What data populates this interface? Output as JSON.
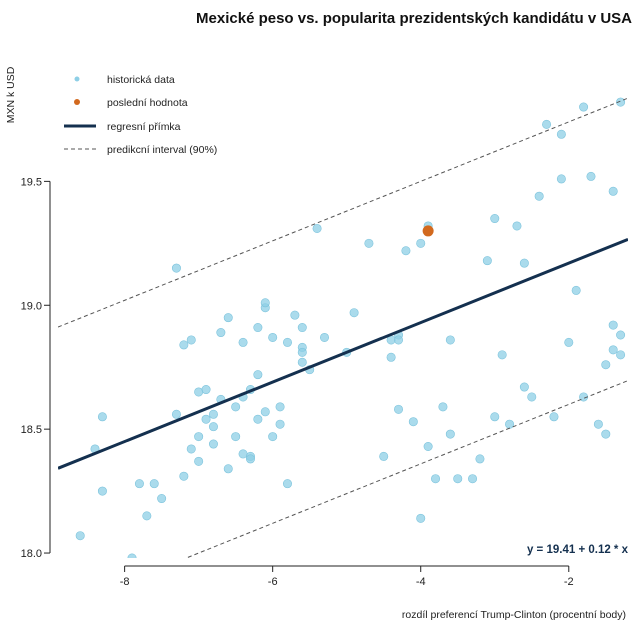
{
  "chart_data": {
    "type": "scatter",
    "title": "Mexické peso vs. popularita prezidentských kandidátu v USA",
    "xlabel": "rozdíl preferencí Trump-Clinton (procentní body)",
    "ylabel": "MXN k USD",
    "xlim": [
      -8.9,
      -1.2
    ],
    "ylim": [
      17.98,
      20.01
    ],
    "x_ticks": [
      -8,
      -6,
      -4,
      -2
    ],
    "x_tick_labels": [
      "-8",
      "-6",
      "-4",
      "-2"
    ],
    "y_ticks": [
      18.0,
      18.5,
      19.0,
      19.5
    ],
    "y_tick_labels": [
      "18.0",
      "18.5",
      "19.0",
      "19.5"
    ],
    "grid": false,
    "legend": {
      "position": "top-left",
      "entries": [
        {
          "label": "historická data",
          "kind": "point",
          "color": "#8ecfe6"
        },
        {
          "label": "poslední hodnota",
          "kind": "point",
          "color": "#d2691e"
        },
        {
          "label": "regresní přímka",
          "kind": "solid-line",
          "color": "#14304f"
        },
        {
          "label": "predikcní interval (90%)",
          "kind": "dashed-line",
          "color": "#555555"
        }
      ]
    },
    "equation": "y = 19.41 + 0.12 * x",
    "regression": {
      "intercept": 19.41,
      "slope": 0.12
    },
    "prediction_interval_halfwidth": 0.57,
    "series": [
      {
        "name": "historická data",
        "color": "#8ecfe6",
        "points": [
          [
            -8.6,
            18.07
          ],
          [
            -8.4,
            18.42
          ],
          [
            -8.3,
            18.55
          ],
          [
            -8.3,
            18.25
          ],
          [
            -7.9,
            17.98
          ],
          [
            -7.8,
            18.28
          ],
          [
            -7.7,
            18.15
          ],
          [
            -7.6,
            18.28
          ],
          [
            -7.5,
            18.22
          ],
          [
            -7.3,
            19.15
          ],
          [
            -7.3,
            18.56
          ],
          [
            -7.2,
            18.84
          ],
          [
            -7.2,
            18.31
          ],
          [
            -7.1,
            18.86
          ],
          [
            -7.1,
            18.42
          ],
          [
            -7.0,
            18.47
          ],
          [
            -7.0,
            18.37
          ],
          [
            -7.0,
            18.65
          ],
          [
            -6.9,
            18.54
          ],
          [
            -6.9,
            18.66
          ],
          [
            -6.8,
            18.56
          ],
          [
            -6.8,
            18.51
          ],
          [
            -6.8,
            18.44
          ],
          [
            -6.7,
            18.89
          ],
          [
            -6.7,
            18.62
          ],
          [
            -6.6,
            18.95
          ],
          [
            -6.6,
            18.34
          ],
          [
            -6.5,
            18.47
          ],
          [
            -6.5,
            18.59
          ],
          [
            -6.4,
            18.63
          ],
          [
            -6.4,
            18.4
          ],
          [
            -6.4,
            18.85
          ],
          [
            -6.3,
            18.66
          ],
          [
            -6.3,
            18.39
          ],
          [
            -6.3,
            18.38
          ],
          [
            -6.2,
            18.72
          ],
          [
            -6.2,
            18.54
          ],
          [
            -6.2,
            18.91
          ],
          [
            -6.1,
            18.99
          ],
          [
            -6.1,
            19.01
          ],
          [
            -6.1,
            18.57
          ],
          [
            -6.0,
            18.47
          ],
          [
            -6.0,
            18.87
          ],
          [
            -5.9,
            18.52
          ],
          [
            -5.9,
            18.59
          ],
          [
            -5.8,
            18.28
          ],
          [
            -5.8,
            18.85
          ],
          [
            -5.7,
            18.96
          ],
          [
            -5.6,
            18.83
          ],
          [
            -5.6,
            18.77
          ],
          [
            -5.6,
            18.81
          ],
          [
            -5.6,
            18.91
          ],
          [
            -5.5,
            18.74
          ],
          [
            -5.4,
            19.31
          ],
          [
            -5.3,
            18.87
          ],
          [
            -5.0,
            18.81
          ],
          [
            -4.9,
            18.97
          ],
          [
            -4.7,
            19.25
          ],
          [
            -4.5,
            18.39
          ],
          [
            -4.4,
            18.86
          ],
          [
            -4.4,
            18.79
          ],
          [
            -4.3,
            18.58
          ],
          [
            -4.3,
            18.88
          ],
          [
            -4.3,
            18.86
          ],
          [
            -4.2,
            19.22
          ],
          [
            -4.1,
            18.53
          ],
          [
            -4.0,
            18.14
          ],
          [
            -4.0,
            19.25
          ],
          [
            -3.9,
            19.32
          ],
          [
            -3.9,
            18.43
          ],
          [
            -3.7,
            18.59
          ],
          [
            -3.6,
            18.48
          ],
          [
            -3.6,
            18.86
          ],
          [
            -3.5,
            18.3
          ],
          [
            -3.3,
            18.3
          ],
          [
            -3.2,
            18.38
          ],
          [
            -3.1,
            19.18
          ],
          [
            -3.0,
            19.35
          ],
          [
            -3.0,
            18.55
          ],
          [
            -2.9,
            18.8
          ],
          [
            -2.8,
            18.52
          ],
          [
            -2.7,
            19.32
          ],
          [
            -2.6,
            19.17
          ],
          [
            -2.6,
            18.67
          ],
          [
            -2.5,
            18.63
          ],
          [
            -2.4,
            19.44
          ],
          [
            -2.3,
            19.73
          ],
          [
            -2.2,
            18.55
          ],
          [
            -2.1,
            19.69
          ],
          [
            -2.1,
            19.51
          ],
          [
            -2.0,
            18.85
          ],
          [
            -1.9,
            19.06
          ],
          [
            -1.8,
            19.8
          ],
          [
            -1.8,
            18.63
          ],
          [
            -1.7,
            19.52
          ],
          [
            -1.6,
            18.52
          ],
          [
            -1.5,
            18.48
          ],
          [
            -1.5,
            18.76
          ],
          [
            -1.4,
            18.82
          ],
          [
            -1.4,
            18.92
          ],
          [
            -1.4,
            19.46
          ],
          [
            -1.3,
            18.8
          ],
          [
            -1.3,
            18.88
          ],
          [
            -1.3,
            19.82
          ],
          [
            -3.8,
            18.3
          ]
        ]
      },
      {
        "name": "poslední hodnota",
        "color": "#d2691e",
        "points": [
          [
            -3.9,
            19.3
          ]
        ]
      }
    ]
  }
}
